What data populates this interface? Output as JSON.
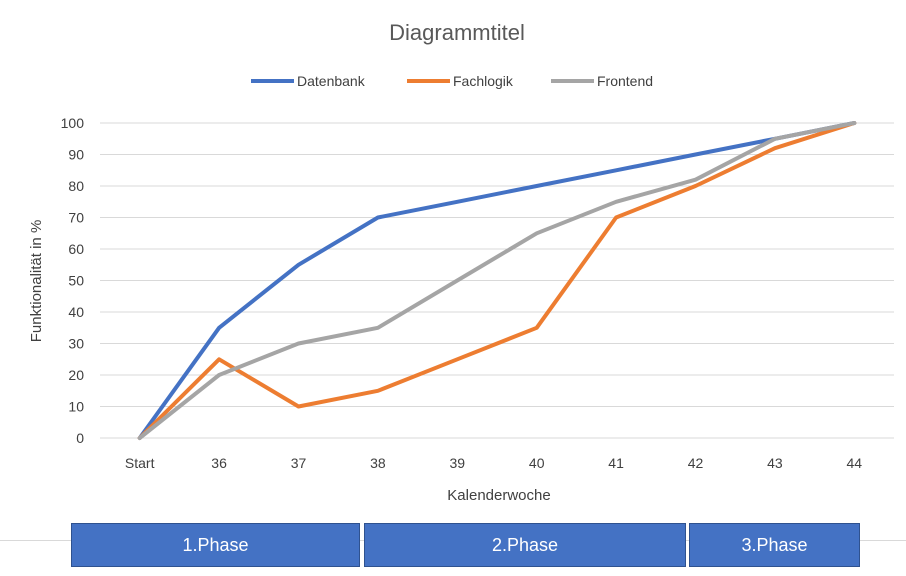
{
  "chart_data": {
    "type": "line",
    "title": "Diagrammtitel",
    "xlabel": "Kalenderwoche",
    "ylabel": "Funktionalität in %",
    "categories": [
      "Start",
      "36",
      "37",
      "38",
      "39",
      "40",
      "41",
      "42",
      "43",
      "44"
    ],
    "ylim": [
      0,
      100
    ],
    "yticks": [
      0,
      10,
      20,
      30,
      40,
      50,
      60,
      70,
      80,
      90,
      100
    ],
    "grid": true,
    "legend_position": "top",
    "series": [
      {
        "name": "Datenbank",
        "color": "#4472c4",
        "values": [
          0,
          35,
          55,
          70,
          75,
          80,
          85,
          90,
          95,
          100
        ]
      },
      {
        "name": "Fachlogik",
        "color": "#ed7d31",
        "values": [
          0,
          25,
          10,
          15,
          25,
          35,
          70,
          80,
          92,
          100
        ]
      },
      {
        "name": "Frontend",
        "color": "#a5a5a5",
        "values": [
          0,
          20,
          30,
          35,
          50,
          65,
          75,
          82,
          95,
          100
        ]
      }
    ]
  },
  "phases": [
    {
      "label": "1.Phase"
    },
    {
      "label": "2.Phase"
    },
    {
      "label": "3.Phase"
    }
  ]
}
